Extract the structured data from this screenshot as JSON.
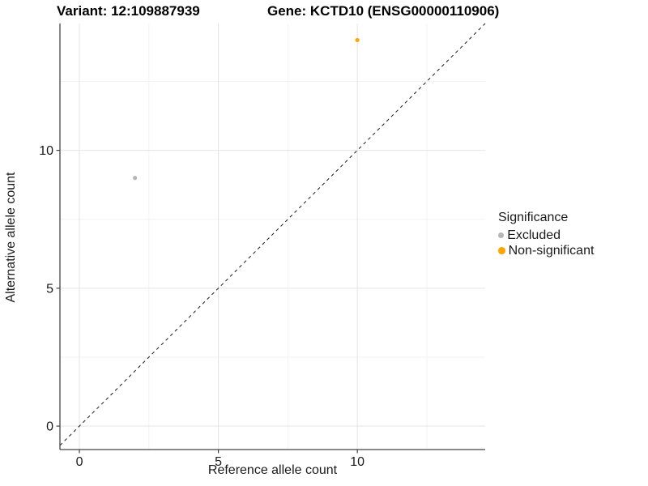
{
  "title": {
    "left": "Variant: 12:109887939",
    "right": "Gene: KCTD10 (ENSG00000110906)"
  },
  "chart_data": {
    "type": "scatter",
    "xlabel": "Reference allele count",
    "ylabel": "Alternative allele count",
    "xlim": [
      -0.7,
      14.6
    ],
    "ylim": [
      -0.85,
      14.6
    ],
    "x_ticks": {
      "values": [
        0,
        5,
        10
      ],
      "labels": [
        "0",
        "5",
        "10"
      ]
    },
    "y_ticks": {
      "values": [
        0,
        5,
        10
      ],
      "labels": [
        "0",
        "5",
        "10"
      ]
    },
    "minor_ticks": [
      2.5,
      7.5,
      12.5
    ],
    "grid": true,
    "identity_line": {
      "style": "dashed",
      "color": "#1a1a1a"
    },
    "points": [
      {
        "x": 2,
        "y": 9,
        "series": "Excluded",
        "color": "#b5b5b5",
        "r": 2.6
      },
      {
        "x": 10,
        "y": 14,
        "series": "Non-significant",
        "color": "#FFA500",
        "r": 2.6
      }
    ],
    "legend": {
      "title": "Significance",
      "position": "right",
      "items": [
        {
          "label": "Excluded",
          "color": "#b5b5b5",
          "r": 3.6
        },
        {
          "label": "Non-significant",
          "color": "#FFA500",
          "r": 4.3
        }
      ]
    },
    "colors": {
      "grid_major": "#e4e4e4",
      "grid_minor": "#f2f2f2",
      "axis_line": "#444444",
      "tick_text": "#1a1a1a"
    }
  }
}
